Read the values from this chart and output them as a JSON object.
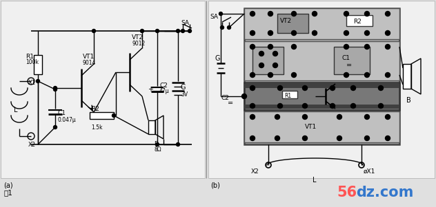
{
  "bg_color": "#e0e0e0",
  "panel_bg": "#f0f0f0",
  "pcb_outer": "#a8a8a8",
  "pcb_inner_light": "#c0c0c0",
  "pcb_inner_dark": "#909090",
  "pcb_strip_dark": "#787878",
  "white": "#ffffff",
  "black": "#000000",
  "label_a": "(a)",
  "label_b": "(b)",
  "figure_label": "图1",
  "wm_red": "#ff5555",
  "wm_blue": "#3377cc"
}
